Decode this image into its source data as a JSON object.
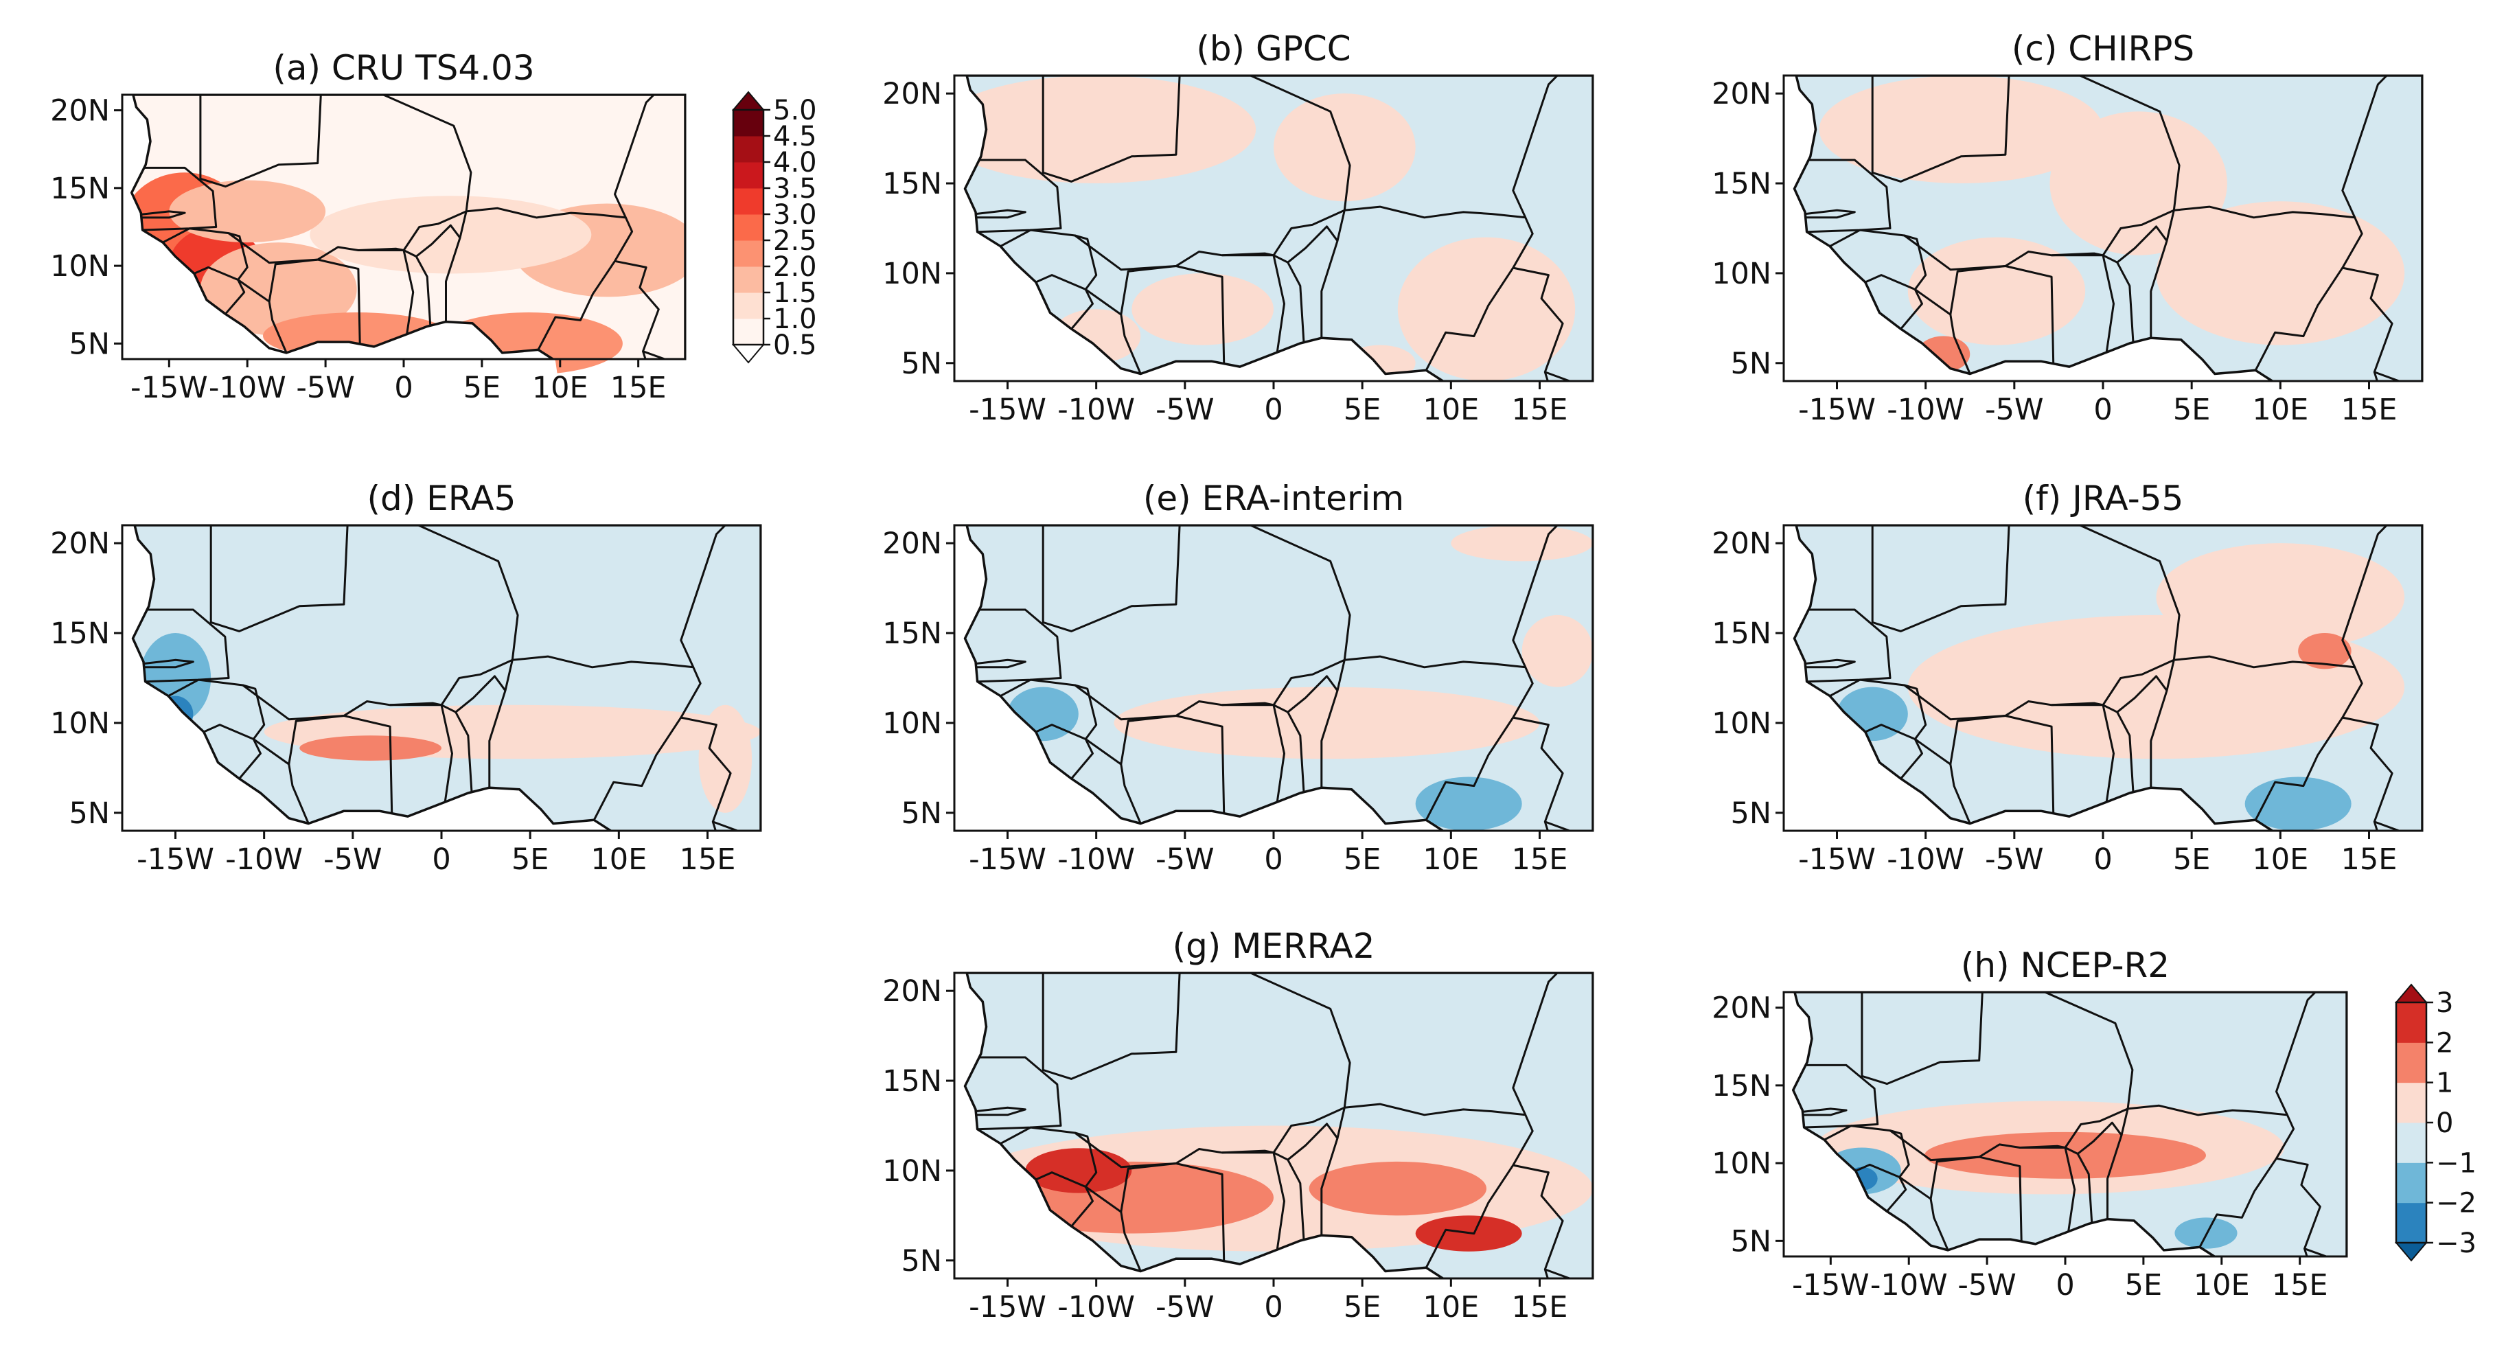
{
  "chart_data": [
    {
      "id": "a",
      "type": "heatmap",
      "title": "(a) CRU TS4.03",
      "xlim": [
        -18,
        18
      ],
      "ylim": [
        4,
        21
      ],
      "xticks": [
        -15,
        -10,
        -5,
        0,
        5,
        10,
        15
      ],
      "yticks": [
        5,
        10,
        15,
        20
      ],
      "xtick_labels": [
        "-15W",
        "-10W",
        "-5W",
        "0",
        "5E",
        "10E",
        "15E"
      ],
      "ytick_labels": [
        "5N",
        "10N",
        "15N",
        "20N"
      ],
      "colorbar": "seq",
      "field": [
        {
          "x": -8,
          "y": 18.5,
          "w": 58,
          "h": 3,
          "v": 0.5
        },
        {
          "x": -5,
          "y": 15,
          "w": 52,
          "h": 4,
          "v": 0.9
        },
        {
          "x": -14,
          "y": 12.5,
          "w": 8,
          "h": 7,
          "v": 2.5
        },
        {
          "x": -12,
          "y": 10,
          "w": 6,
          "h": 5,
          "v": 3.2
        },
        {
          "x": -8,
          "y": 8.5,
          "w": 10,
          "h": 6,
          "v": 1.7
        },
        {
          "x": -3,
          "y": 5.5,
          "w": 12,
          "h": 3,
          "v": 2.2
        },
        {
          "x": 8,
          "y": 5,
          "w": 12,
          "h": 4,
          "v": 2.0
        },
        {
          "x": 13,
          "y": 11,
          "w": 12,
          "h": 6,
          "v": 1.6
        },
        {
          "x": 3,
          "y": 12,
          "w": 18,
          "h": 5,
          "v": 1.3
        },
        {
          "x": -10,
          "y": 13.5,
          "w": 10,
          "h": 4,
          "v": 1.6
        }
      ]
    },
    {
      "id": "b",
      "type": "heatmap",
      "title": "(b) GPCC",
      "xlim": [
        -18,
        18
      ],
      "ylim": [
        4,
        21
      ],
      "xticks": [
        -15,
        -10,
        -5,
        0,
        5,
        10,
        15
      ],
      "yticks": [
        5,
        10,
        15,
        20
      ],
      "xtick_labels": [
        "-15W",
        "-10W",
        "-5W",
        "0",
        "5E",
        "10E",
        "15E"
      ],
      "ytick_labels": [
        "5N",
        "10N",
        "15N",
        "20N"
      ],
      "colorbar": "div",
      "field": [
        {
          "x": -10,
          "y": 18,
          "w": 18,
          "h": 6,
          "v": 0.5
        },
        {
          "x": 4,
          "y": 17,
          "w": 8,
          "h": 6,
          "v": 0.5
        },
        {
          "x": 12,
          "y": 8,
          "w": 10,
          "h": 8,
          "v": 0.5
        },
        {
          "x": -4,
          "y": 8,
          "w": 8,
          "h": 4,
          "v": 0.5
        },
        {
          "x": -10,
          "y": 6.5,
          "w": 5,
          "h": 3,
          "v": 0.5
        },
        {
          "x": 6,
          "y": 5,
          "w": 4,
          "h": 2,
          "v": 0.5
        }
      ]
    },
    {
      "id": "c",
      "type": "heatmap",
      "title": "(c) CHIRPS",
      "xlim": [
        -18,
        18
      ],
      "ylim": [
        4,
        21
      ],
      "xticks": [
        -15,
        -10,
        -5,
        0,
        5,
        10,
        15
      ],
      "yticks": [
        5,
        10,
        15,
        20
      ],
      "xtick_labels": [
        "-15W",
        "-10W",
        "-5W",
        "0",
        "5E",
        "10E",
        "15E"
      ],
      "ytick_labels": [
        "5N",
        "10N",
        "15N",
        "20N"
      ],
      "colorbar": "div",
      "field": [
        {
          "x": -8,
          "y": 18,
          "w": 16,
          "h": 6,
          "v": 0.5
        },
        {
          "x": 2,
          "y": 15,
          "w": 10,
          "h": 8,
          "v": 0.5
        },
        {
          "x": 10,
          "y": 10,
          "w": 14,
          "h": 8,
          "v": 0.5
        },
        {
          "x": -6,
          "y": 9,
          "w": 10,
          "h": 6,
          "v": 0.5
        },
        {
          "x": -9,
          "y": 5.5,
          "w": 3,
          "h": 2,
          "v": 1.5
        }
      ]
    },
    {
      "id": "d",
      "type": "heatmap",
      "title": "(d) ERA5",
      "xlim": [
        -18,
        18
      ],
      "ylim": [
        4,
        21
      ],
      "xticks": [
        -15,
        -10,
        -5,
        0,
        5,
        10,
        15
      ],
      "yticks": [
        5,
        10,
        15,
        20
      ],
      "xtick_labels": [
        "-15W",
        "-10W",
        "-5W",
        "0",
        "5E",
        "10E",
        "15E"
      ],
      "ytick_labels": [
        "5N",
        "10N",
        "15N",
        "20N"
      ],
      "colorbar": "div",
      "field": [
        {
          "x": 4,
          "y": 9.5,
          "w": 28,
          "h": 3,
          "v": 0.5
        },
        {
          "x": -4,
          "y": 8.6,
          "w": 8,
          "h": 1.4,
          "v": 1.3
        },
        {
          "x": -15,
          "y": 12.5,
          "w": 4,
          "h": 5,
          "v": -1.5
        },
        {
          "x": -15,
          "y": 10.5,
          "w": 2,
          "h": 2,
          "v": -2.3
        },
        {
          "x": 16,
          "y": 8,
          "w": 3,
          "h": 6,
          "v": 0.5
        }
      ]
    },
    {
      "id": "e",
      "type": "heatmap",
      "title": "(e) ERA-interim",
      "xlim": [
        -18,
        18
      ],
      "ylim": [
        4,
        21
      ],
      "xticks": [
        -15,
        -10,
        -5,
        0,
        5,
        10,
        15
      ],
      "yticks": [
        5,
        10,
        15,
        20
      ],
      "xtick_labels": [
        "-15W",
        "-10W",
        "-5W",
        "0",
        "5E",
        "10E",
        "15E"
      ],
      "ytick_labels": [
        "5N",
        "10N",
        "15N",
        "20N"
      ],
      "colorbar": "div",
      "field": [
        {
          "x": 3,
          "y": 10,
          "w": 24,
          "h": 4,
          "v": 0.5
        },
        {
          "x": 14,
          "y": 20,
          "w": 8,
          "h": 2,
          "v": 0.5
        },
        {
          "x": -13,
          "y": 10.5,
          "w": 4,
          "h": 3,
          "v": -1.5
        },
        {
          "x": 11,
          "y": 5.5,
          "w": 6,
          "h": 3,
          "v": -1.5
        },
        {
          "x": 16,
          "y": 14,
          "w": 4,
          "h": 4,
          "v": 0.5
        }
      ]
    },
    {
      "id": "f",
      "type": "heatmap",
      "title": "(f) JRA-55",
      "xlim": [
        -18,
        18
      ],
      "ylim": [
        4,
        21
      ],
      "xticks": [
        -15,
        -10,
        -5,
        0,
        5,
        10,
        15
      ],
      "yticks": [
        5,
        10,
        15,
        20
      ],
      "xtick_labels": [
        "-15W",
        "-10W",
        "-5W",
        "0",
        "5E",
        "10E",
        "15E"
      ],
      "ytick_labels": [
        "5N",
        "10N",
        "15N",
        "20N"
      ],
      "colorbar": "div",
      "field": [
        {
          "x": 3,
          "y": 12,
          "w": 28,
          "h": 8,
          "v": 0.5
        },
        {
          "x": 10,
          "y": 17,
          "w": 14,
          "h": 6,
          "v": 0.5
        },
        {
          "x": 12.5,
          "y": 14,
          "w": 3,
          "h": 2,
          "v": 1.3
        },
        {
          "x": -13,
          "y": 10.5,
          "w": 4,
          "h": 3,
          "v": -1.3
        },
        {
          "x": 11,
          "y": 5.5,
          "w": 6,
          "h": 3,
          "v": -1.5
        }
      ]
    },
    {
      "id": "g",
      "type": "heatmap",
      "title": "(g) MERRA2",
      "xlim": [
        -18,
        18
      ],
      "ylim": [
        4,
        21
      ],
      "xticks": [
        -15,
        -10,
        -5,
        0,
        5,
        10,
        15
      ],
      "yticks": [
        5,
        10,
        15,
        20
      ],
      "xtick_labels": [
        "-15W",
        "-10W",
        "-5W",
        "0",
        "5E",
        "10E",
        "15E"
      ],
      "ytick_labels": [
        "5N",
        "10N",
        "15N",
        "20N"
      ],
      "colorbar": "div",
      "field": [
        {
          "x": 0,
          "y": 9,
          "w": 36,
          "h": 7,
          "v": 0.5
        },
        {
          "x": -8,
          "y": 8.5,
          "w": 16,
          "h": 4,
          "v": 1.4
        },
        {
          "x": -11,
          "y": 10,
          "w": 6,
          "h": 2.5,
          "v": 2.3
        },
        {
          "x": 7,
          "y": 9,
          "w": 10,
          "h": 3,
          "v": 1.4
        },
        {
          "x": 11,
          "y": 6.5,
          "w": 6,
          "h": 2,
          "v": 2.2
        }
      ]
    },
    {
      "id": "h",
      "type": "heatmap",
      "title": "(h) NCEP-R2",
      "xlim": [
        -18,
        18
      ],
      "ylim": [
        4,
        21
      ],
      "xticks": [
        -15,
        -10,
        -5,
        0,
        5,
        10,
        15
      ],
      "yticks": [
        5,
        10,
        15,
        20
      ],
      "xtick_labels": [
        "-15W",
        "-10W",
        "-5W",
        "0",
        "5E",
        "10E",
        "15E"
      ],
      "ytick_labels": [
        "5N",
        "10N",
        "15N",
        "20N"
      ],
      "colorbar": "div",
      "field": [
        {
          "x": -1,
          "y": 11,
          "w": 30,
          "h": 6,
          "v": 0.5
        },
        {
          "x": 0,
          "y": 10.5,
          "w": 18,
          "h": 3,
          "v": 1.4
        },
        {
          "x": -13,
          "y": 9.5,
          "w": 5,
          "h": 3,
          "v": -1.5
        },
        {
          "x": -13,
          "y": 9,
          "w": 2,
          "h": 1.5,
          "v": -2.3
        },
        {
          "x": 9,
          "y": 5.5,
          "w": 4,
          "h": 2,
          "v": -1.4
        }
      ]
    }
  ],
  "colorbars": {
    "seq": {
      "levels": [
        0.5,
        1.0,
        1.5,
        2.0,
        2.5,
        3.0,
        3.5,
        4.0,
        4.5,
        5.0
      ],
      "labels": [
        "0.5",
        "1.0",
        "1.5",
        "2.0",
        "2.5",
        "3.0",
        "3.5",
        "4.0",
        "4.5",
        "5.0"
      ],
      "colors": [
        "#fff5f0",
        "#fee0d2",
        "#fcbba1",
        "#fc9272",
        "#fb6a4a",
        "#ef3b2c",
        "#cb181d",
        "#a50f15",
        "#67000d"
      ],
      "extend_low": "#ffffff",
      "extend_high": "#67000d"
    },
    "div": {
      "levels": [
        -3,
        -2,
        -1,
        0,
        1,
        2,
        3
      ],
      "labels": [
        "−3",
        "−2",
        "−1",
        "0",
        "1",
        "2",
        "3"
      ],
      "colors": [
        "#2b83be",
        "#6fb7d8",
        "#d5e8f0",
        "#fbdcd0",
        "#f4826a",
        "#d62f27"
      ],
      "extend_low": "#0b5d97",
      "extend_high": "#a50f15"
    }
  }
}
